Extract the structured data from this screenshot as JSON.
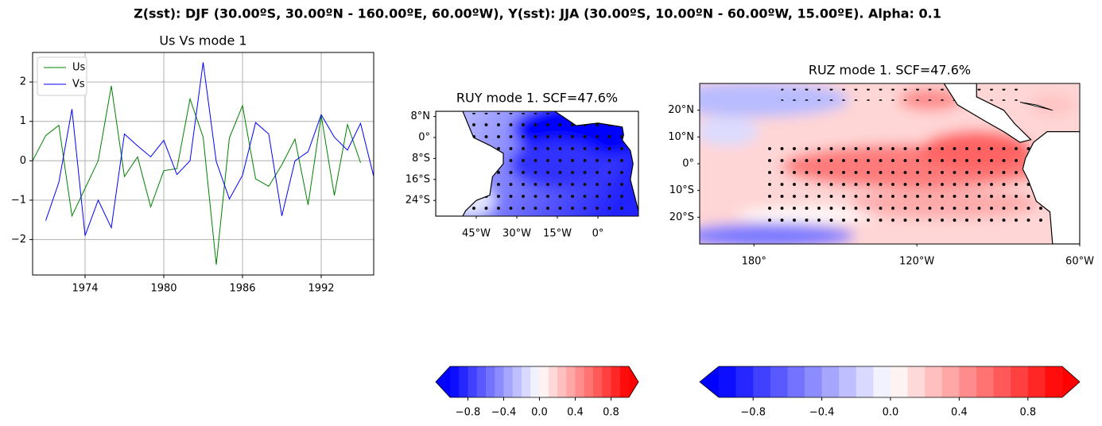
{
  "suptitle": "Z(sst): DJF (30.00ºS, 30.00ºN - 160.00ºE, 60.00ºW), Y(sst): JJA (30.00ºS, 10.00ºN - 60.00ºW, 15.00ºE). Alpha: 0.1",
  "chart_data": [
    {
      "type": "line",
      "title": "Us Vs mode 1",
      "x": [
        1970,
        1971,
        1972,
        1973,
        1974,
        1975,
        1976,
        1977,
        1978,
        1979,
        1980,
        1981,
        1982,
        1983,
        1984,
        1985,
        1986,
        1987,
        1988,
        1989,
        1990,
        1991,
        1992,
        1993,
        1994,
        1995,
        1996
      ],
      "xlim": [
        1970,
        1996
      ],
      "xticks": [
        1974,
        1980,
        1986,
        1992
      ],
      "ylim": [
        -2.9,
        2.75
      ],
      "yticks": [
        {
          "value": -2,
          "label": "−2"
        },
        {
          "value": -1,
          "label": "−1"
        },
        0,
        1,
        2
      ],
      "grid": true,
      "legend": "upper left",
      "series": [
        {
          "name": "Us",
          "color": "#008000",
          "values": [
            0,
            0.64,
            0.9,
            -1.4,
            -0.7,
            0,
            1.9,
            -0.4,
            0.1,
            -1.17,
            -0.25,
            -0.2,
            1.57,
            0.6,
            -2.64,
            0.58,
            1.4,
            -0.46,
            -0.65,
            -0.1,
            0.55,
            -1.12,
            1.15,
            -0.88,
            0.92,
            -0.05,
            null
          ]
        },
        {
          "name": "Vs",
          "color": "#0000ff",
          "values": [
            null,
            -1.52,
            -0.55,
            1.31,
            -1.9,
            -1.0,
            -1.7,
            0.68,
            0.38,
            0.1,
            0.52,
            -0.35,
            0,
            2.5,
            -0.02,
            -0.97,
            -0.37,
            0.97,
            0.68,
            -1.4,
            0,
            0.23,
            1.17,
            0.6,
            0.27,
            0.95,
            -0.4
          ]
        }
      ]
    },
    {
      "type": "map",
      "title": "RUY mode 1. SCF=47.6%",
      "xlim": [
        -60,
        15
      ],
      "ylim": [
        -30,
        10
      ],
      "xticks": [
        {
          "value": -45,
          "label": "45°W"
        },
        {
          "value": -30,
          "label": "30°W"
        },
        {
          "value": -15,
          "label": "15°W"
        },
        {
          "value": 0,
          "label": "0°"
        }
      ],
      "yticks": [
        {
          "value": 8,
          "label": "8°N"
        },
        {
          "value": 0,
          "label": "0°"
        },
        {
          "value": -8,
          "label": "8°S"
        },
        {
          "value": -16,
          "label": "16°S"
        },
        {
          "value": -24,
          "label": "24°S"
        }
      ]
    },
    {
      "type": "map",
      "title": "RUZ mode 1. SCF=47.6%",
      "xlim": [
        160,
        300
      ],
      "ylim": [
        -30,
        30
      ],
      "xticks": [
        {
          "value": 180,
          "label": "180°"
        },
        {
          "value": 240,
          "label": "120°W"
        },
        {
          "value": 300,
          "label": "60°W"
        }
      ],
      "yticks": [
        {
          "value": 20,
          "label": "20°N"
        },
        {
          "value": 10,
          "label": "10°N"
        },
        {
          "value": 0,
          "label": "0°"
        },
        {
          "value": -10,
          "label": "10°S"
        },
        {
          "value": -20,
          "label": "20°S"
        }
      ]
    },
    {
      "type": "colorbar",
      "colormap": "bwr",
      "lim": [
        -1,
        1
      ],
      "levels": [
        -1,
        -0.9,
        -0.8,
        -0.7,
        -0.6,
        -0.5,
        -0.4,
        -0.3,
        -0.2,
        -0.1,
        0,
        0.1,
        0.2,
        0.3,
        0.4,
        0.5,
        0.6,
        0.7,
        0.8,
        0.9,
        1
      ],
      "xticks": [
        {
          "value": -0.8,
          "label": "−0.8"
        },
        {
          "value": -0.4,
          "label": "−0.4"
        },
        {
          "value": 0,
          "label": "0.0"
        },
        0.4,
        0.8
      ]
    },
    {
      "type": "colorbar",
      "colormap": "bwr",
      "lim": [
        -1,
        1
      ],
      "levels": [
        -1,
        -0.9,
        -0.8,
        -0.7,
        -0.6,
        -0.5,
        -0.4,
        -0.3,
        -0.2,
        -0.1,
        0,
        0.1,
        0.2,
        0.3,
        0.4,
        0.5,
        0.6,
        0.7,
        0.8,
        0.9,
        1
      ],
      "xticks": [
        {
          "value": -0.8,
          "label": "−0.8"
        },
        {
          "value": -0.4,
          "label": "−0.4"
        },
        {
          "value": 0,
          "label": "0.0"
        },
        0.4,
        0.8
      ]
    }
  ]
}
